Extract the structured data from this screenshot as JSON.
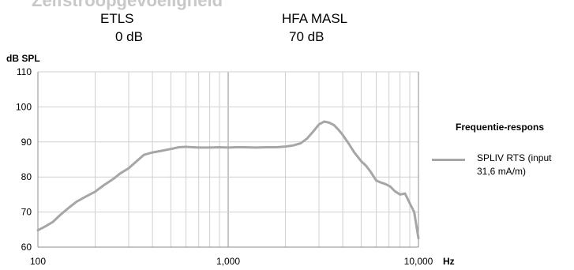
{
  "header": {
    "title": "Zelfstroopgevoeligheid",
    "left_label": "ETLS",
    "left_value": "0 dB",
    "right_label": "HFA MASL",
    "right_value": "70 dB"
  },
  "legend": {
    "title": "Frequentie-respons",
    "series_label": "SPLIV RTS (input 31,6 mA/m)"
  },
  "chart_data": {
    "type": "line",
    "ylabel": "dB SPL",
    "xlabel": "Hz",
    "x_scale": "log",
    "xlim": [
      100,
      10000
    ],
    "ylim": [
      60,
      110
    ],
    "x_ticks": [
      100,
      1000,
      10000
    ],
    "x_tick_labels": [
      "100",
      "1,000",
      "10,000"
    ],
    "y_ticks": [
      60,
      70,
      80,
      90,
      100,
      110
    ],
    "grid": true,
    "legend_position": "right",
    "series": [
      {
        "name": "SPLIV RTS (input 31,6 mA/m)",
        "color": "#a6a6a6",
        "x": [
          100,
          110,
          120,
          130,
          140,
          150,
          160,
          180,
          200,
          220,
          250,
          270,
          300,
          330,
          360,
          400,
          450,
          500,
          550,
          600,
          650,
          700,
          800,
          900,
          1000,
          1100,
          1200,
          1400,
          1600,
          1800,
          2000,
          2200,
          2400,
          2600,
          2800,
          3000,
          3200,
          3400,
          3600,
          3800,
          4000,
          4300,
          4600,
          5000,
          5300,
          5600,
          6000,
          6300,
          6700,
          7100,
          7500,
          8000,
          8500,
          9000,
          9500,
          10000
        ],
        "y": [
          64.8,
          66,
          67.2,
          69,
          70.5,
          71.8,
          73,
          74.5,
          75.8,
          77.5,
          79.5,
          81,
          82.5,
          84.5,
          86.3,
          87,
          87.5,
          88,
          88.5,
          88.6,
          88.5,
          88.4,
          88.4,
          88.5,
          88.4,
          88.5,
          88.5,
          88.4,
          88.5,
          88.5,
          88.7,
          89,
          89.6,
          91,
          93,
          95,
          95.8,
          95.5,
          94.8,
          93.5,
          92,
          89.5,
          87,
          84.5,
          83.2,
          81.5,
          79,
          78.5,
          78,
          77.3,
          76,
          75,
          75.3,
          72.5,
          70,
          62.5
        ]
      }
    ]
  }
}
